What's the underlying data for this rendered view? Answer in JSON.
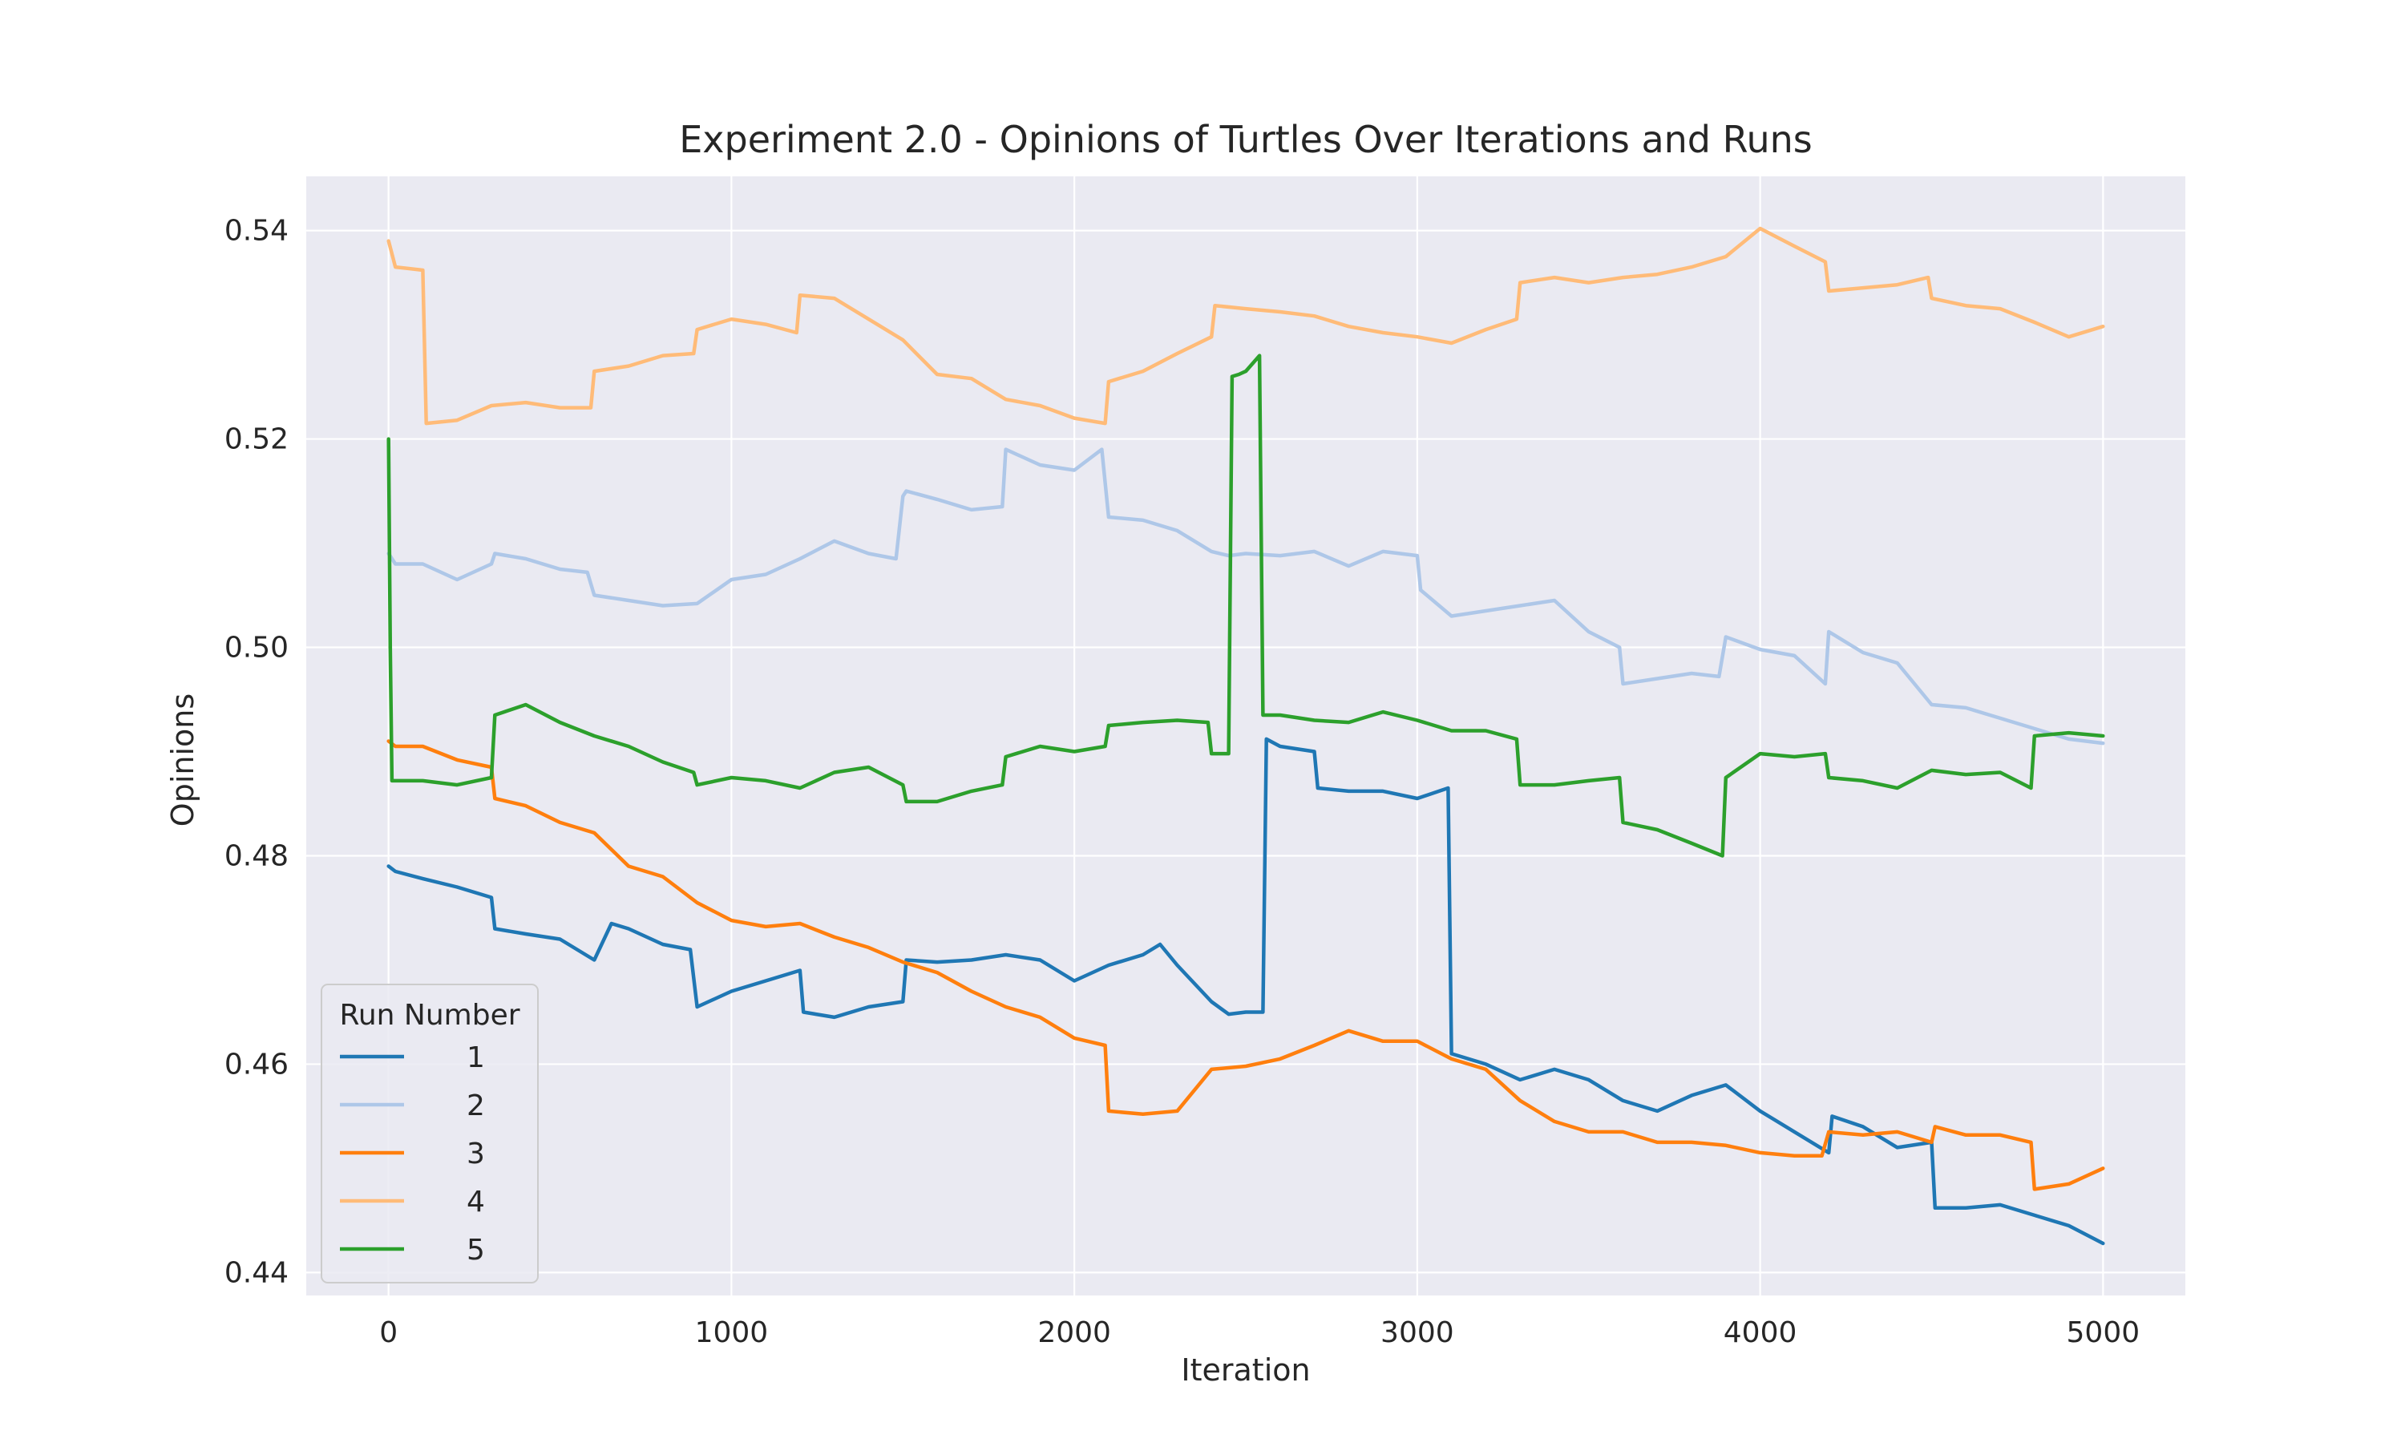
{
  "chart_data": {
    "type": "line",
    "title": "Experiment 2.0 - Opinions of Turtles Over Iterations and Runs",
    "xlabel": "Iteration",
    "ylabel": "Opinions",
    "xlim": [
      -240,
      5240
    ],
    "ylim": [
      0.4378,
      0.5452
    ],
    "xticks": [
      0,
      1000,
      2000,
      3000,
      4000,
      5000
    ],
    "yticks": [
      0.44,
      0.46,
      0.48,
      0.5,
      0.52,
      0.54
    ],
    "ytick_labels": [
      "0.44",
      "0.46",
      "0.48",
      "0.50",
      "0.52",
      "0.54"
    ],
    "grid": true,
    "legend": {
      "title": "Run Number",
      "placement": "lower-left"
    },
    "series": [
      {
        "name": "1",
        "color": "#1f77b4",
        "x": [
          0,
          20,
          100,
          200,
          300,
          310,
          400,
          500,
          600,
          650,
          700,
          800,
          880,
          900,
          1000,
          1100,
          1200,
          1210,
          1300,
          1400,
          1500,
          1510,
          1600,
          1700,
          1800,
          1900,
          2000,
          2100,
          2200,
          2250,
          2300,
          2400,
          2450,
          2500,
          2550,
          2560,
          2600,
          2700,
          2710,
          2800,
          2900,
          3000,
          3090,
          3100,
          3200,
          3300,
          3400,
          3500,
          3600,
          3700,
          3800,
          3900,
          4000,
          4100,
          4200,
          4210,
          4300,
          4400,
          4500,
          4510,
          4600,
          4700,
          4800,
          4900,
          5000
        ],
        "y": [
          0.479,
          0.4785,
          0.4778,
          0.477,
          0.476,
          0.473,
          0.4725,
          0.472,
          0.47,
          0.4735,
          0.473,
          0.4715,
          0.471,
          0.4655,
          0.467,
          0.468,
          0.469,
          0.465,
          0.4645,
          0.4655,
          0.466,
          0.47,
          0.4698,
          0.47,
          0.4705,
          0.47,
          0.468,
          0.4695,
          0.4705,
          0.4715,
          0.4695,
          0.466,
          0.4648,
          0.465,
          0.465,
          0.4912,
          0.4905,
          0.49,
          0.4865,
          0.4862,
          0.4862,
          0.4855,
          0.4865,
          0.461,
          0.46,
          0.4585,
          0.4595,
          0.4585,
          0.4565,
          0.4555,
          0.457,
          0.458,
          0.4555,
          0.4535,
          0.4515,
          0.455,
          0.454,
          0.452,
          0.4525,
          0.4462,
          0.4462,
          0.4465,
          0.4455,
          0.4445,
          0.4428
        ]
      },
      {
        "name": "2",
        "color": "#aec7e8",
        "x": [
          0,
          20,
          100,
          200,
          300,
          310,
          400,
          500,
          580,
          600,
          700,
          800,
          900,
          1000,
          1100,
          1200,
          1300,
          1400,
          1480,
          1500,
          1510,
          1600,
          1700,
          1790,
          1800,
          1900,
          2000,
          2080,
          2100,
          2200,
          2300,
          2400,
          2450,
          2500,
          2600,
          2700,
          2800,
          2900,
          3000,
          3010,
          3100,
          3200,
          3300,
          3400,
          3500,
          3590,
          3600,
          3700,
          3800,
          3880,
          3900,
          4000,
          4100,
          4190,
          4200,
          4300,
          4400,
          4500,
          4600,
          4700,
          4800,
          4900,
          5000
        ],
        "y": [
          0.509,
          0.508,
          0.508,
          0.5065,
          0.508,
          0.509,
          0.5085,
          0.5075,
          0.5072,
          0.505,
          0.5045,
          0.504,
          0.5042,
          0.5065,
          0.507,
          0.5085,
          0.5102,
          0.509,
          0.5085,
          0.5145,
          0.515,
          0.5142,
          0.5132,
          0.5135,
          0.519,
          0.5175,
          0.517,
          0.519,
          0.5125,
          0.5122,
          0.5112,
          0.5092,
          0.5088,
          0.509,
          0.5088,
          0.5092,
          0.5078,
          0.5092,
          0.5088,
          0.5055,
          0.503,
          0.5035,
          0.504,
          0.5045,
          0.5015,
          0.5,
          0.4965,
          0.497,
          0.4975,
          0.4972,
          0.501,
          0.4998,
          0.4992,
          0.4965,
          0.5015,
          0.4995,
          0.4985,
          0.4945,
          0.4942,
          0.4932,
          0.4922,
          0.4912,
          0.4908
        ]
      },
      {
        "name": "3",
        "color": "#ff7f0e",
        "x": [
          0,
          20,
          100,
          200,
          300,
          310,
          400,
          500,
          600,
          700,
          800,
          900,
          1000,
          1100,
          1200,
          1300,
          1400,
          1500,
          1600,
          1700,
          1800,
          1900,
          2000,
          2090,
          2100,
          2200,
          2300,
          2400,
          2500,
          2600,
          2700,
          2800,
          2900,
          3000,
          3100,
          3200,
          3300,
          3400,
          3500,
          3600,
          3700,
          3800,
          3900,
          4000,
          4100,
          4180,
          4200,
          4300,
          4400,
          4500,
          4510,
          4600,
          4700,
          4790,
          4800,
          4900,
          5000
        ],
        "y": [
          0.491,
          0.4905,
          0.4905,
          0.4892,
          0.4885,
          0.4855,
          0.4848,
          0.4832,
          0.4822,
          0.479,
          0.478,
          0.4755,
          0.4738,
          0.4732,
          0.4735,
          0.4722,
          0.4712,
          0.4698,
          0.4688,
          0.467,
          0.4655,
          0.4645,
          0.4625,
          0.4618,
          0.4555,
          0.4552,
          0.4555,
          0.4595,
          0.4598,
          0.4605,
          0.4618,
          0.4632,
          0.4622,
          0.4622,
          0.4605,
          0.4595,
          0.4565,
          0.4545,
          0.4535,
          0.4535,
          0.4525,
          0.4525,
          0.4522,
          0.4515,
          0.4512,
          0.4512,
          0.4535,
          0.4532,
          0.4535,
          0.4525,
          0.454,
          0.4532,
          0.4532,
          0.4525,
          0.448,
          0.4485,
          0.45
        ]
      },
      {
        "name": "4",
        "color": "#ffbb78",
        "x": [
          0,
          20,
          100,
          110,
          200,
          300,
          400,
          500,
          590,
          600,
          700,
          800,
          890,
          900,
          1000,
          1100,
          1190,
          1200,
          1300,
          1400,
          1500,
          1600,
          1700,
          1800,
          1900,
          2000,
          2090,
          2100,
          2200,
          2300,
          2400,
          2410,
          2500,
          2600,
          2700,
          2800,
          2900,
          3000,
          3100,
          3200,
          3290,
          3300,
          3400,
          3500,
          3600,
          3700,
          3800,
          3900,
          4000,
          4100,
          4190,
          4200,
          4300,
          4400,
          4490,
          4500,
          4600,
          4700,
          4800,
          4900,
          5000
        ],
        "y": [
          0.539,
          0.5365,
          0.5362,
          0.5215,
          0.5218,
          0.5232,
          0.5235,
          0.523,
          0.523,
          0.5265,
          0.527,
          0.528,
          0.5282,
          0.5305,
          0.5315,
          0.531,
          0.5302,
          0.5338,
          0.5335,
          0.5315,
          0.5295,
          0.5262,
          0.5258,
          0.5238,
          0.5232,
          0.522,
          0.5215,
          0.5255,
          0.5265,
          0.5282,
          0.5298,
          0.5328,
          0.5325,
          0.5322,
          0.5318,
          0.5308,
          0.5302,
          0.5298,
          0.5292,
          0.5305,
          0.5315,
          0.535,
          0.5355,
          0.535,
          0.5355,
          0.5358,
          0.5365,
          0.5375,
          0.5402,
          0.5385,
          0.537,
          0.5342,
          0.5345,
          0.5348,
          0.5355,
          0.5335,
          0.5328,
          0.5325,
          0.5312,
          0.5298,
          0.5308
        ]
      },
      {
        "name": "5",
        "color": "#2ca02c",
        "x": [
          0,
          5,
          10,
          100,
          200,
          300,
          310,
          400,
          500,
          600,
          700,
          800,
          890,
          900,
          1000,
          1100,
          1200,
          1300,
          1400,
          1500,
          1510,
          1600,
          1700,
          1790,
          1800,
          1900,
          2000,
          2090,
          2100,
          2200,
          2300,
          2390,
          2400,
          2450,
          2460,
          2480,
          2500,
          2540,
          2550,
          2600,
          2700,
          2800,
          2900,
          3000,
          3100,
          3200,
          3290,
          3300,
          3400,
          3500,
          3590,
          3600,
          3700,
          3800,
          3890,
          3900,
          4000,
          4100,
          4190,
          4200,
          4300,
          4400,
          4500,
          4600,
          4700,
          4790,
          4800,
          4900,
          5000
        ],
        "y": [
          0.52,
          0.5,
          0.4872,
          0.4872,
          0.4868,
          0.4875,
          0.4935,
          0.4945,
          0.4928,
          0.4915,
          0.4905,
          0.489,
          0.488,
          0.4868,
          0.4875,
          0.4872,
          0.4865,
          0.488,
          0.4885,
          0.4868,
          0.4852,
          0.4852,
          0.4862,
          0.4868,
          0.4895,
          0.4905,
          0.49,
          0.4905,
          0.4925,
          0.4928,
          0.493,
          0.4928,
          0.4898,
          0.4898,
          0.526,
          0.5262,
          0.5265,
          0.528,
          0.4935,
          0.4935,
          0.493,
          0.4928,
          0.4938,
          0.493,
          0.492,
          0.492,
          0.4912,
          0.4868,
          0.4868,
          0.4872,
          0.4875,
          0.4832,
          0.4825,
          0.4812,
          0.48,
          0.4875,
          0.4898,
          0.4895,
          0.4898,
          0.4875,
          0.4872,
          0.4865,
          0.4882,
          0.4878,
          0.488,
          0.4865,
          0.4915,
          0.4918,
          0.4915
        ]
      }
    ]
  }
}
